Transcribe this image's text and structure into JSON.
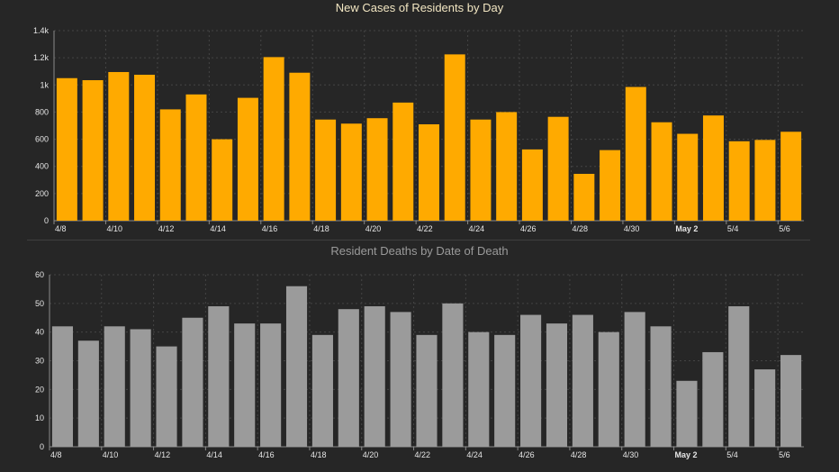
{
  "colors": {
    "background": "#262626",
    "cases_bar": "#ffaa00",
    "deaths_bar": "#9b9b9b",
    "axis_text": "#e6e6e6",
    "grid": "#444444"
  },
  "chart_data": [
    {
      "type": "bar",
      "title": "New Cases of Residents by Day",
      "xlabel": "",
      "ylabel": "",
      "ylim": [
        0,
        1400
      ],
      "grid": true,
      "y_ticks": [
        "0",
        "200",
        "400",
        "600",
        "800",
        "1k",
        "1.2k",
        "1.4k"
      ],
      "x_tick_labels": [
        "4/8",
        "4/10",
        "4/12",
        "4/14",
        "4/16",
        "4/18",
        "4/20",
        "4/22",
        "4/24",
        "4/26",
        "4/28",
        "4/30",
        "May 2",
        "5/4",
        "5/6"
      ],
      "categories": [
        "4/8",
        "4/9",
        "4/10",
        "4/11",
        "4/12",
        "4/13",
        "4/14",
        "4/15",
        "4/16",
        "4/17",
        "4/18",
        "4/19",
        "4/20",
        "4/21",
        "4/22",
        "4/23",
        "4/24",
        "4/25",
        "4/26",
        "4/27",
        "4/28",
        "4/29",
        "4/30",
        "5/1",
        "May 2",
        "5/3",
        "5/4",
        "5/5",
        "5/6"
      ],
      "values": [
        1050,
        1035,
        1095,
        1075,
        820,
        930,
        600,
        905,
        1205,
        1090,
        745,
        715,
        755,
        870,
        710,
        1225,
        745,
        800,
        525,
        765,
        345,
        520,
        985,
        725,
        640,
        775,
        585,
        595,
        655
      ]
    },
    {
      "type": "bar",
      "title": "Resident Deaths by Date of Death",
      "xlabel": "",
      "ylabel": "",
      "ylim": [
        0,
        60
      ],
      "grid": true,
      "y_ticks": [
        "0",
        "10",
        "20",
        "30",
        "40",
        "50",
        "60"
      ],
      "x_tick_labels": [
        "4/8",
        "4/10",
        "4/12",
        "4/14",
        "4/16",
        "4/18",
        "4/20",
        "4/22",
        "4/24",
        "4/26",
        "4/28",
        "4/30",
        "May 2",
        "5/4",
        "5/6"
      ],
      "categories": [
        "4/8",
        "4/9",
        "4/10",
        "4/11",
        "4/12",
        "4/13",
        "4/14",
        "4/15",
        "4/16",
        "4/17",
        "4/18",
        "4/19",
        "4/20",
        "4/21",
        "4/22",
        "4/23",
        "4/24",
        "4/25",
        "4/26",
        "4/27",
        "4/28",
        "4/29",
        "4/30",
        "5/1",
        "May 2",
        "5/3",
        "5/4",
        "5/5",
        "5/6"
      ],
      "values": [
        42,
        37,
        42,
        41,
        35,
        45,
        49,
        43,
        43,
        56,
        39,
        48,
        49,
        47,
        39,
        50,
        40,
        39,
        46,
        43,
        46,
        40,
        47,
        42,
        23,
        33,
        49,
        27,
        32
      ]
    }
  ]
}
